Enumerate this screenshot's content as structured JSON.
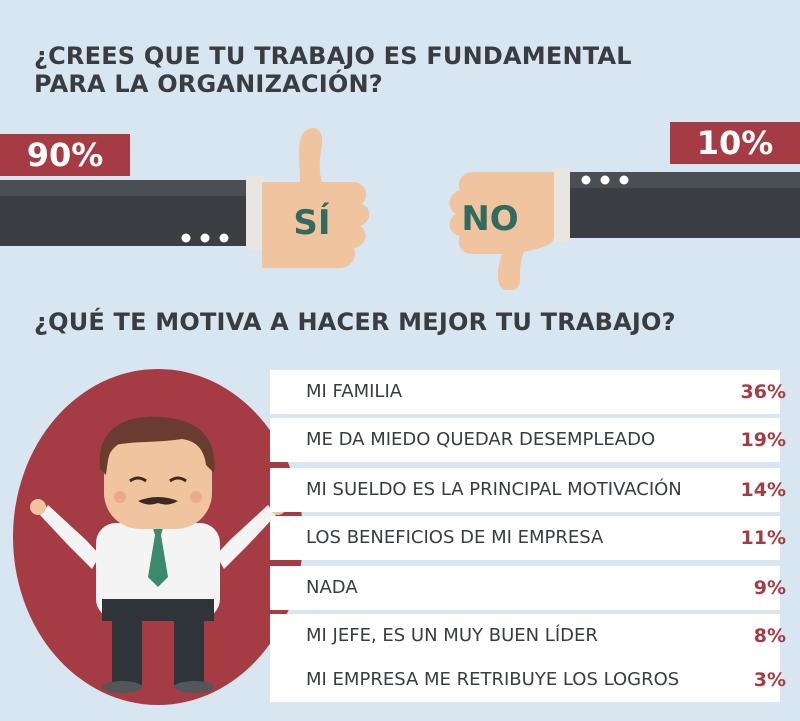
{
  "question1": {
    "title": "¿CREES QUE TU TRABAJO ES FUNDAMENTAL PARA LA ORGANIZACIÓN?"
  },
  "yes": {
    "label": "SÍ",
    "percent": "90%",
    "value": 90
  },
  "no": {
    "label": "NO",
    "percent": "10%",
    "value": 10
  },
  "question2": {
    "title": "¿QUÉ TE MOTIVA A HACER MEJOR TU TRABAJO?"
  },
  "motivations": [
    {
      "label": "MI FAMILIA",
      "percent": "36%"
    },
    {
      "label": "ME DA MIEDO QUEDAR DESEMPLEADO",
      "percent": "19%"
    },
    {
      "label": "MI SUELDO ES LA PRINCIPAL MOTIVACIÓN",
      "percent": "14%"
    },
    {
      "label": "LOS BENEFICIOS DE MI EMPRESA",
      "percent": "11%"
    },
    {
      "label": "NADA",
      "percent": "9%"
    },
    {
      "label": "MI JEFE, ES UN MUY BUEN LÍDER",
      "percent": "8%"
    },
    {
      "label": "MI EMPRESA ME RETRIBUYE LOS LOGROS",
      "percent": "3%"
    }
  ],
  "colors": {
    "background": "#d8e6f2",
    "accent": "#a53c43",
    "sleeve": "#3b3f43",
    "skin": "#f0c49f",
    "hand_text": "#2f6b5e"
  },
  "icons": [
    "thumbs-up-icon",
    "thumbs-down-icon",
    "businessman-icon"
  ]
}
